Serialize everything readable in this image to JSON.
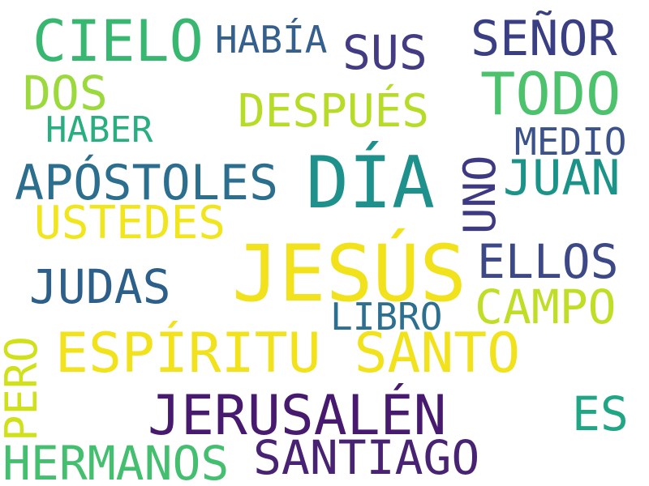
{
  "words": [
    {
      "id": "jesus",
      "text": "JESÚS",
      "color": "#f1e21c"
    },
    {
      "id": "dia",
      "text": "DÍA",
      "color": "#1f918c"
    },
    {
      "id": "espiritu_santo",
      "text": "ESPÍRITU SANTO",
      "color": "#f1e21c"
    },
    {
      "id": "jerusalen",
      "text": "JERUSALÉN",
      "color": "#471a6f"
    },
    {
      "id": "todo",
      "text": "TODO",
      "color": "#4cc26c"
    },
    {
      "id": "cielo",
      "text": "CIELO",
      "color": "#37b76f"
    },
    {
      "id": "apostoles",
      "text": "APÓSTOLES",
      "color": "#2b6e8e"
    },
    {
      "id": "santiago",
      "text": "SANTIAGO",
      "color": "#482273"
    },
    {
      "id": "hermanos",
      "text": "HERMANOS",
      "color": "#44bf70"
    },
    {
      "id": "senor",
      "text": "SEÑOR",
      "color": "#3a3f84"
    },
    {
      "id": "ellos",
      "text": "ELLOS",
      "color": "#3d4987"
    },
    {
      "id": "judas",
      "text": "JUDAS",
      "color": "#2c5f8a"
    },
    {
      "id": "ustedes",
      "text": "USTEDES",
      "color": "#f1e51d"
    },
    {
      "id": "despues",
      "text": "DESPUÉS",
      "color": "#b6dc28"
    },
    {
      "id": "campo",
      "text": "CAMPO",
      "color": "#c1de27"
    },
    {
      "id": "juan",
      "text": "JUAN",
      "color": "#1c9389"
    },
    {
      "id": "sus",
      "text": "SUS",
      "color": "#433c83"
    },
    {
      "id": "dos",
      "text": "DOS",
      "color": "#9bd93c"
    },
    {
      "id": "es",
      "text": "ES",
      "color": "#21a685"
    },
    {
      "id": "uno",
      "text": "UNO",
      "color": "#3e3a82"
    },
    {
      "id": "pero",
      "text": "PERO",
      "color": "#d0e11c"
    },
    {
      "id": "habia",
      "text": "HABÍA",
      "color": "#355f8d"
    },
    {
      "id": "libro",
      "text": "LIBRO",
      "color": "#2d6f8e"
    },
    {
      "id": "medio",
      "text": "MEDIO",
      "color": "#3b528b"
    },
    {
      "id": "haber",
      "text": "HABER",
      "color": "#29af7f"
    }
  ]
}
